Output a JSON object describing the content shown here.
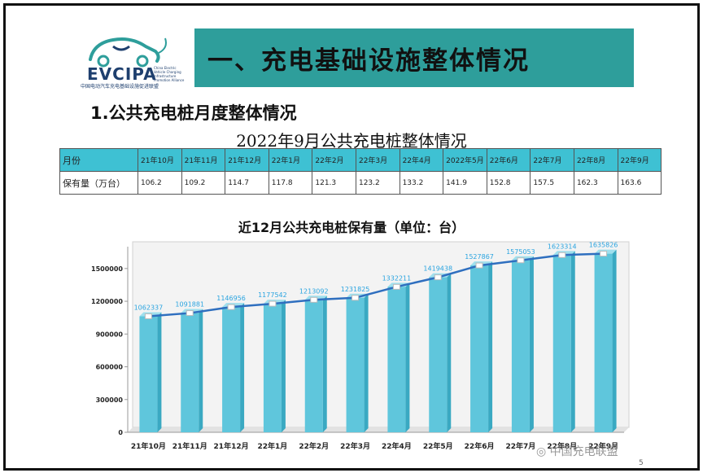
{
  "logo": {
    "name": "EVCIPA",
    "org_cn": "中国电动汽车充电基础设施促进联盟",
    "org_en": "China Electric Vehicle Charging Infrastructure Promotion Alliance"
  },
  "header": {
    "title": "一、充电基础设施整体情况"
  },
  "section": {
    "subtitle": "1.公共充电桩月度整体情况"
  },
  "table": {
    "title": "2022年9月公共充电桩整体情况",
    "row_headers": [
      "月份",
      "保有量（万台）"
    ],
    "months": [
      "21年10月",
      "21年11月",
      "21年12月",
      "22年1月",
      "22年2月",
      "22年3月",
      "22年4月",
      "2022年5月",
      "22年6月",
      "22年7月",
      "22年8月",
      "22年9月"
    ],
    "values": [
      "106.2",
      "109.2",
      "114.7",
      "117.8",
      "121.3",
      "123.2",
      "133.2",
      "141.9",
      "152.8",
      "157.5",
      "162.3",
      "163.6"
    ]
  },
  "chart_data": {
    "type": "bar",
    "title": "近12月公共充电桩保有量（单位：台）",
    "categories": [
      "21年10月",
      "21年11月",
      "21年12月",
      "22年1月",
      "22年2月",
      "22年3月",
      "22年4月",
      "22年5月",
      "22年6月",
      "22年7月",
      "22年8月",
      "22年9月"
    ],
    "values": [
      1062337,
      1091881,
      1146956,
      1177542,
      1213092,
      1231825,
      1332211,
      1419438,
      1527867,
      1575053,
      1623314,
      1635826
    ],
    "ylim": [
      0,
      1700000
    ],
    "yticks": [
      0,
      300000,
      600000,
      900000,
      1200000,
      1500000
    ],
    "overlay": "line",
    "bar_color": "#5fc6dc",
    "line_color": "#2f6fbf",
    "label_color": "#2aa4e0"
  },
  "footer": {
    "watermark": "中国充电联盟",
    "page": "5"
  }
}
